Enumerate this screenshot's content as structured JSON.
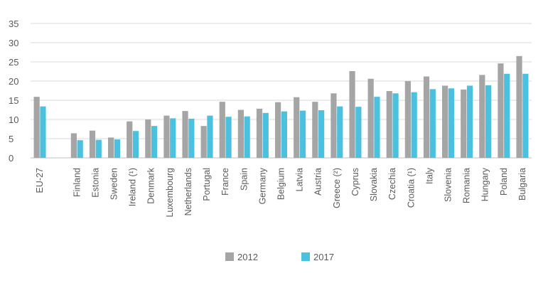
{
  "chart_data": {
    "type": "bar",
    "title": "",
    "xlabel": "",
    "ylabel": "",
    "ylim": [
      0,
      35
    ],
    "yticks": [
      0,
      5,
      10,
      15,
      20,
      25,
      30,
      35
    ],
    "grid": true,
    "legend_placement": "bottom-center",
    "categories": [
      "EU-27",
      "",
      "Finland",
      "Estonia",
      "Sweden",
      "Ireland (¹)",
      "Denmark",
      "Luxembourg",
      "Netherlands",
      "Portugal",
      "France",
      "Spain",
      "Germany",
      "Belgium",
      "Latvia",
      "Austria",
      "Greece (²)",
      "Cyprus",
      "Slovakia",
      "Czechia",
      "Croatia (¹)",
      "Italy",
      "Slovenia",
      "Romania",
      "Hungary",
      "Poland",
      "Bulgaria"
    ],
    "series": [
      {
        "name": "2012",
        "color": "#a5a5a5",
        "values": [
          15.9,
          null,
          6.4,
          7.1,
          5.3,
          9.5,
          10.0,
          11.0,
          12.2,
          8.3,
          14.6,
          12.5,
          12.8,
          14.5,
          15.8,
          14.6,
          16.8,
          22.6,
          20.6,
          17.4,
          20.0,
          21.2,
          18.8,
          17.8,
          21.6,
          24.6,
          26.5
        ]
      },
      {
        "name": "2017",
        "color": "#4cc0df",
        "values": [
          13.4,
          null,
          4.6,
          4.7,
          4.8,
          7.0,
          8.3,
          10.3,
          10.2,
          11.0,
          10.7,
          10.8,
          11.7,
          12.1,
          12.3,
          12.4,
          13.4,
          13.3,
          15.9,
          16.8,
          17.1,
          17.9,
          18.1,
          18.8,
          18.9,
          21.9,
          21.9
        ]
      }
    ]
  }
}
